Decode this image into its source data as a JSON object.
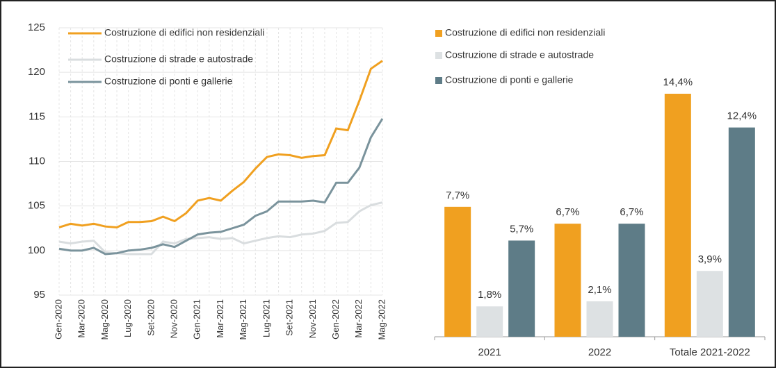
{
  "chart_data": [
    {
      "type": "line",
      "categories": [
        "Gen-2020",
        null,
        "Mar-2020",
        null,
        "Mag-2020",
        null,
        "Lug-2020",
        null,
        "Set-2020",
        null,
        "Nov-2020",
        null,
        "Gen-2021",
        null,
        "Mar-2021",
        null,
        "Mag-2021",
        null,
        "Lug-2021",
        null,
        "Set-2021",
        null,
        "Nov-2021",
        null,
        "Gen-2022",
        null,
        "Mar-2022",
        null,
        "Mag-2022"
      ],
      "series": [
        {
          "name": "Costruzione di edifici non residenziali",
          "color": "#f0a020",
          "values": [
            102.6,
            103.0,
            102.8,
            103.0,
            102.7,
            102.6,
            103.2,
            103.2,
            103.3,
            103.8,
            103.3,
            104.2,
            105.6,
            105.9,
            105.6,
            106.7,
            107.7,
            109.2,
            110.5,
            110.8,
            110.7,
            110.4,
            110.6,
            110.7,
            113.7,
            113.5,
            116.8,
            120.4,
            121.3
          ]
        },
        {
          "name": "Costruzione di strade e autostrade",
          "color": "#d9dddf",
          "values": [
            101.0,
            100.8,
            101.0,
            101.1,
            99.8,
            99.7,
            99.6,
            99.6,
            99.6,
            101.0,
            100.8,
            101.3,
            101.4,
            101.5,
            101.3,
            101.4,
            100.8,
            101.1,
            101.4,
            101.6,
            101.5,
            101.8,
            101.9,
            102.2,
            103.1,
            103.2,
            104.4,
            105.1,
            105.4
          ]
        },
        {
          "name": "Costruzione di ponti e gallerie",
          "color": "#7a939c",
          "values": [
            100.2,
            100.0,
            100.0,
            100.3,
            99.6,
            99.7,
            100.0,
            100.1,
            100.3,
            100.7,
            100.4,
            101.1,
            101.8,
            102.0,
            102.1,
            102.5,
            102.9,
            103.9,
            104.4,
            105.5,
            105.5,
            105.5,
            105.6,
            105.4,
            107.6,
            107.6,
            109.3,
            112.7,
            114.8
          ]
        }
      ],
      "ylim": [
        95,
        125
      ],
      "yticks": [
        95,
        100,
        105,
        110,
        115,
        120,
        125
      ],
      "grid": true
    },
    {
      "type": "bar",
      "categories": [
        "2021",
        "2022",
        "Totale 2021-2022"
      ],
      "series": [
        {
          "name": "Costruzione di edifici non residenziali",
          "color": "#f0a020",
          "values": [
            7.7,
            6.7,
            14.4
          ],
          "value_labels": [
            "7,7%",
            "6,7%",
            "14,4%"
          ]
        },
        {
          "name": "Costruzione di strade e autostrade",
          "color": "#dde1e3",
          "values": [
            1.8,
            2.1,
            3.9
          ],
          "value_labels": [
            "1,8%",
            "2,1%",
            "3,9%"
          ]
        },
        {
          "name": "Costruzione di ponti e gallerie",
          "color": "#5e7c87",
          "values": [
            5.7,
            6.7,
            12.4
          ],
          "value_labels": [
            "5,7%",
            "6,7%",
            "12,4%"
          ]
        }
      ]
    }
  ]
}
